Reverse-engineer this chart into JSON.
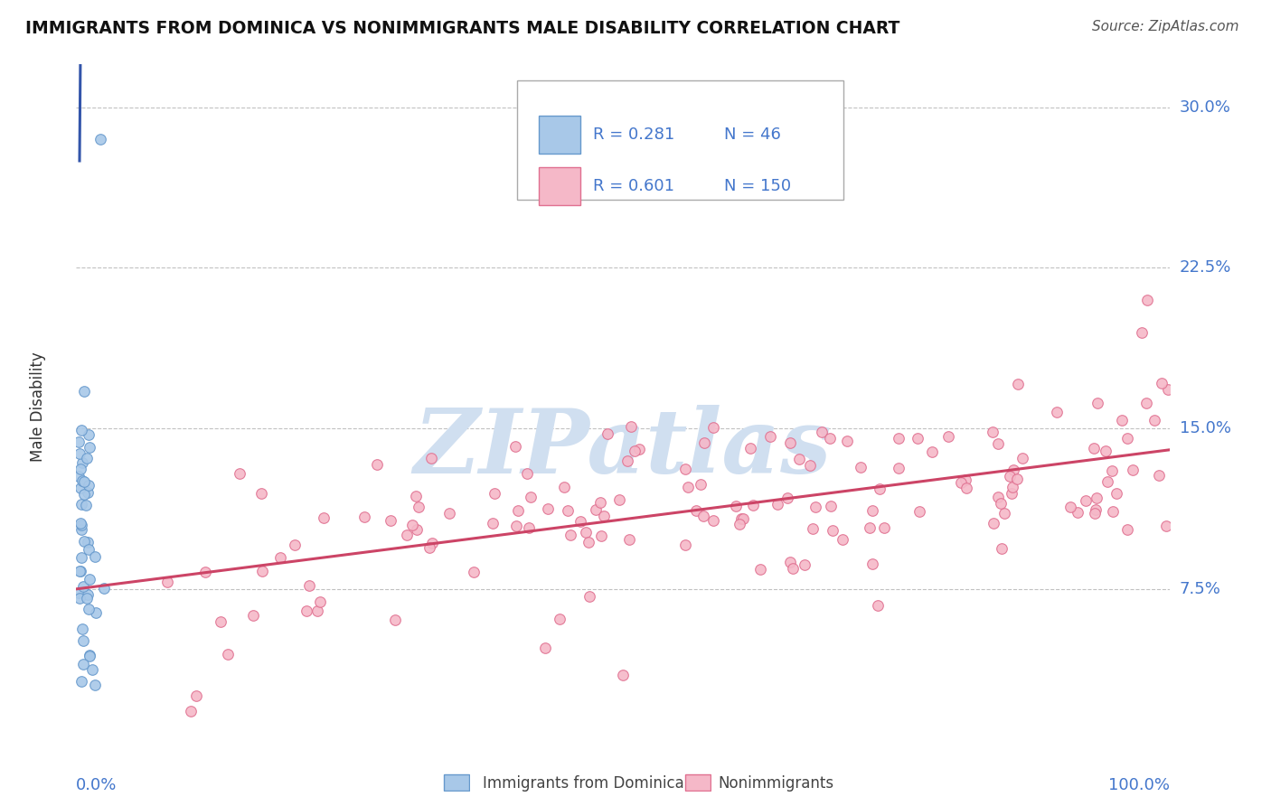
{
  "title": "IMMIGRANTS FROM DOMINICA VS NONIMMIGRANTS MALE DISABILITY CORRELATION CHART",
  "source": "Source: ZipAtlas.com",
  "ylabel": "Male Disability",
  "yticks": [
    7.5,
    15.0,
    22.5,
    30.0
  ],
  "ytick_labels": [
    "7.5%",
    "15.0%",
    "22.5%",
    "30.0%"
  ],
  "xtick_labels": [
    "0.0%",
    "100.0%"
  ],
  "xlim": [
    0.0,
    100.0
  ],
  "ylim": [
    0.0,
    32.0
  ],
  "legend_R1": "0.281",
  "legend_N1": "46",
  "legend_R2": "0.601",
  "legend_N2": "150",
  "blue_color": "#a8c8e8",
  "blue_edge_color": "#6699cc",
  "pink_color": "#f5b8c8",
  "pink_edge_color": "#e07090",
  "blue_line_color": "#3355aa",
  "pink_line_color": "#cc4466",
  "watermark_text": "ZIPatlas",
  "watermark_color": "#d0dff0",
  "background_color": "#ffffff",
  "grid_color": "#bbbbbb",
  "title_color": "#111111",
  "source_color": "#555555",
  "axis_label_color": "#333333",
  "tick_label_color": "#4477cc",
  "legend_text_color": "#4477cc",
  "bottom_legend_color": "#444444",
  "marker_size": 70,
  "blue_line_intercept": 9.5,
  "blue_line_slope": 60.0,
  "pink_line_intercept": 7.5,
  "pink_line_slope": 0.065
}
